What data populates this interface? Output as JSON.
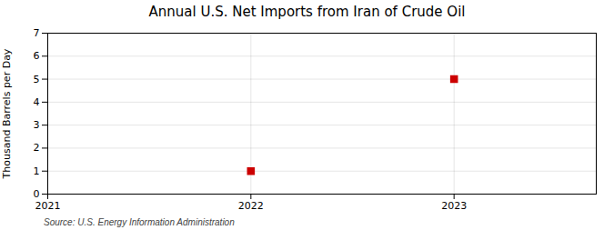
{
  "chart_data": {
    "type": "scatter",
    "title": "Annual U.S. Net Imports from Iran of Crude Oil",
    "ylabel": "Thousand Barrels per Day",
    "source": "Source: U.S. Energy Information Administration",
    "x": [
      2022,
      2023
    ],
    "values": [
      1,
      5
    ],
    "color": "#cc0000",
    "marker": "square",
    "xlim": [
      2021,
      2023.7
    ],
    "xticks": [
      2021,
      2022,
      2023
    ],
    "ylim": [
      0,
      7
    ],
    "yticks": [
      0,
      1,
      2,
      3,
      4,
      5,
      6,
      7
    ],
    "grid": true
  }
}
